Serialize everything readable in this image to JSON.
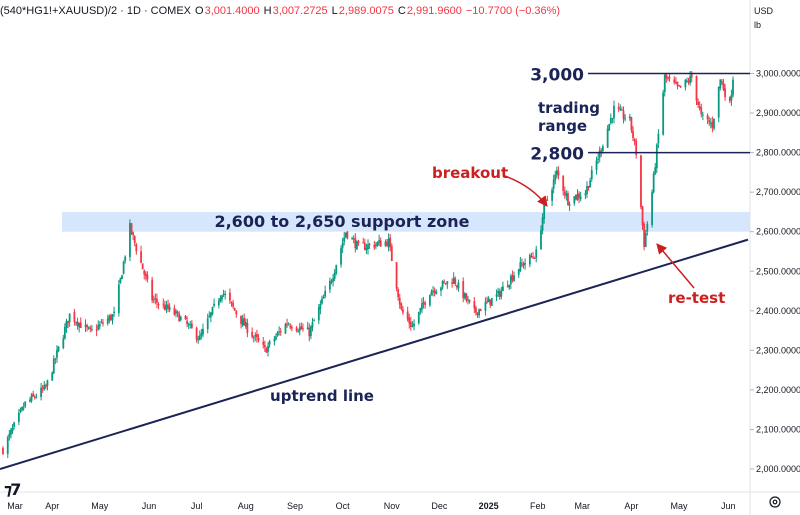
{
  "header": {
    "symbol": "(540*HG1!+XAUUSD)/2 · 1D · COMEX",
    "o_label": "O",
    "o_value": "3,001.4000",
    "h_label": "H",
    "h_value": "3,007.2725",
    "l_label": "L",
    "l_value": "2,989.0075",
    "c_label": "C",
    "c_value": "2,991.9600",
    "change": "−10.7700 (−0.36%)",
    "currency": "USD",
    "unit": "lb"
  },
  "colors": {
    "up": "#089981",
    "down": "#f23645",
    "annotation_navy": "#1a2456",
    "annotation_red": "#cc1f1f",
    "support_zone": "#cfe2fb"
  },
  "icons": {
    "logo": "tradingview-logo",
    "settings": "gear-icon"
  },
  "chart_data": {
    "type": "candlestick",
    "title": "",
    "xlabel": "",
    "ylabel": "",
    "ylim": [
      1985,
      3082
    ],
    "y_ticks": [
      2000,
      2100,
      2200,
      2300,
      2400,
      2500,
      2600,
      2700,
      2800,
      2900,
      3000
    ],
    "y_tick_labels": [
      "2,000.0000",
      "2,100.0000",
      "2,200.0000",
      "2,300.0000",
      "2,400.0000",
      "2,500.0000",
      "2,600.0000",
      "2,700.0000",
      "2,800.0000",
      "2,900.0000",
      "3,000.0000"
    ],
    "x_tick_labels": [
      "Mar",
      "Apr",
      "May",
      "Jun",
      "Jul",
      "Aug",
      "Sep",
      "Oct",
      "Nov",
      "Dec",
      "2025",
      "Feb",
      "Mar",
      "Apr",
      "May",
      "Jun"
    ],
    "x_period": [
      "2024-03-01",
      "2025-06-04"
    ],
    "price_path": [
      [
        "2024-03-01",
        2050
      ],
      [
        "2024-03-15",
        2165
      ],
      [
        "2024-03-28",
        2205
      ],
      [
        "2024-04-12",
        2390
      ],
      [
        "2024-04-25",
        2345
      ],
      [
        "2024-05-10",
        2390
      ],
      [
        "2024-05-20",
        2610
      ],
      [
        "2024-06-03",
        2430
      ],
      [
        "2024-06-20",
        2385
      ],
      [
        "2024-07-03",
        2330
      ],
      [
        "2024-07-17",
        2450
      ],
      [
        "2024-07-30",
        2370
      ],
      [
        "2024-08-13",
        2300
      ],
      [
        "2024-08-27",
        2370
      ],
      [
        "2024-09-10",
        2345
      ],
      [
        "2024-09-24",
        2480
      ],
      [
        "2024-10-03",
        2600
      ],
      [
        "2024-10-11",
        2560
      ],
      [
        "2024-10-30",
        2575
      ],
      [
        "2024-11-07",
        2400
      ],
      [
        "2024-11-14",
        2360
      ],
      [
        "2024-11-25",
        2450
      ],
      [
        "2024-12-10",
        2480
      ],
      [
        "2024-12-23",
        2395
      ],
      [
        "2025-01-07",
        2440
      ],
      [
        "2025-01-20",
        2510
      ],
      [
        "2025-01-31",
        2545
      ],
      [
        "2025-02-05",
        2660
      ],
      [
        "2025-02-13",
        2750
      ],
      [
        "2025-02-20",
        2680
      ],
      [
        "2025-03-03",
        2700
      ],
      [
        "2025-03-12",
        2800
      ],
      [
        "2025-03-21",
        2910
      ],
      [
        "2025-03-31",
        2880
      ],
      [
        "2025-04-04",
        2800
      ],
      [
        "2025-04-09",
        2570
      ],
      [
        "2025-04-14",
        2700
      ],
      [
        "2025-04-22",
        2990
      ],
      [
        "2025-05-01",
        2960
      ],
      [
        "2025-05-09",
        2990
      ],
      [
        "2025-05-15",
        2890
      ],
      [
        "2025-05-22",
        2870
      ],
      [
        "2025-05-27",
        2985
      ],
      [
        "2025-06-02",
        2920
      ],
      [
        "2025-06-04",
        2992
      ]
    ],
    "horizontal_levels": [
      {
        "value": 3000,
        "label": "3,000"
      },
      {
        "value": 2800,
        "label": "2,800"
      }
    ],
    "support_zone": {
      "from": 2600,
      "to": 2650,
      "label": "2,600 to 2,650 support zone"
    },
    "trend_line": {
      "label": "uptrend line",
      "start": [
        "2024-03-01",
        2000
      ],
      "end": [
        "2025-06-04",
        2580
      ]
    },
    "annotations": [
      {
        "text": "trading",
        "color": "annotation_navy"
      },
      {
        "text": "range",
        "color": "annotation_navy"
      },
      {
        "text": "breakout",
        "color": "annotation_red"
      },
      {
        "text": "re-test",
        "color": "annotation_red"
      }
    ]
  }
}
